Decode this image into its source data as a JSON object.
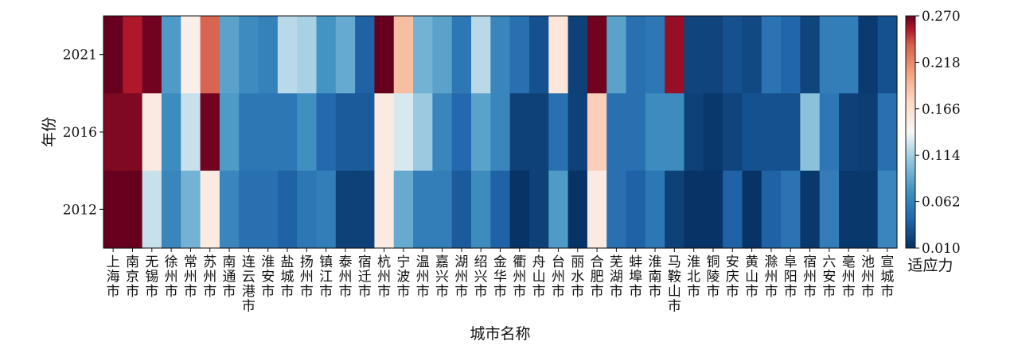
{
  "chart_data": {
    "type": "heatmap",
    "title": "",
    "xlabel": "城市名称",
    "ylabel": "年份",
    "colorbar_label": "适应力",
    "colormap": "RdBu_r",
    "colorbar_range": [
      0.01,
      0.27
    ],
    "colorbar_ticks": [
      "0.270",
      "0.218",
      "0.166",
      "0.114",
      "0.062",
      "0.010"
    ],
    "years": [
      "2021",
      "2016",
      "2012"
    ],
    "cities": [
      "上海市",
      "南京市",
      "无锡市",
      "徐州市",
      "常州市",
      "苏州市",
      "南通市",
      "连云港市",
      "淮安市",
      "盐城市",
      "扬州市",
      "镇江市",
      "泰州市",
      "宿迁市",
      "杭州市",
      "宁波市",
      "温州市",
      "嘉兴市",
      "湖州市",
      "绍兴市",
      "金华市",
      "衢州市",
      "舟山市",
      "台州市",
      "丽水市",
      "合肥市",
      "芜湖市",
      "蚌埠市",
      "淮南市",
      "马鞍山市",
      "淮北市",
      "铜陵市",
      "安庆市",
      "黄山市",
      "滁州市",
      "阜阳市",
      "宿州市",
      "六安市",
      "亳州市",
      "池州市",
      "宣城市"
    ],
    "values": [
      [
        0.27,
        0.255,
        0.268,
        0.08,
        0.15,
        0.235,
        0.085,
        0.07,
        0.062,
        0.12,
        0.115,
        0.075,
        0.09,
        0.04,
        0.27,
        0.19,
        0.095,
        0.085,
        0.055,
        0.12,
        0.065,
        0.05,
        0.03,
        0.16,
        0.02,
        0.268,
        0.085,
        0.05,
        0.055,
        0.26,
        0.022,
        0.022,
        0.03,
        0.025,
        0.052,
        0.042,
        0.022,
        0.06,
        0.06,
        0.016,
        0.03
      ],
      [
        0.265,
        0.265,
        0.155,
        0.07,
        0.125,
        0.268,
        0.08,
        0.055,
        0.055,
        0.055,
        0.072,
        0.045,
        0.035,
        0.035,
        0.155,
        0.13,
        0.11,
        0.065,
        0.045,
        0.085,
        0.065,
        0.02,
        0.02,
        0.05,
        0.02,
        0.18,
        0.05,
        0.05,
        0.07,
        0.07,
        0.02,
        0.015,
        0.022,
        0.03,
        0.03,
        0.03,
        0.105,
        0.055,
        0.02,
        0.018,
        0.05
      ],
      [
        0.27,
        0.272,
        0.125,
        0.065,
        0.095,
        0.155,
        0.065,
        0.05,
        0.05,
        0.04,
        0.055,
        0.06,
        0.02,
        0.02,
        0.155,
        0.09,
        0.06,
        0.06,
        0.035,
        0.07,
        0.04,
        0.012,
        0.02,
        0.08,
        0.012,
        0.155,
        0.05,
        0.04,
        0.055,
        0.02,
        0.012,
        0.012,
        0.04,
        0.012,
        0.04,
        0.052,
        0.015,
        0.06,
        0.015,
        0.015,
        0.065
      ]
    ]
  }
}
